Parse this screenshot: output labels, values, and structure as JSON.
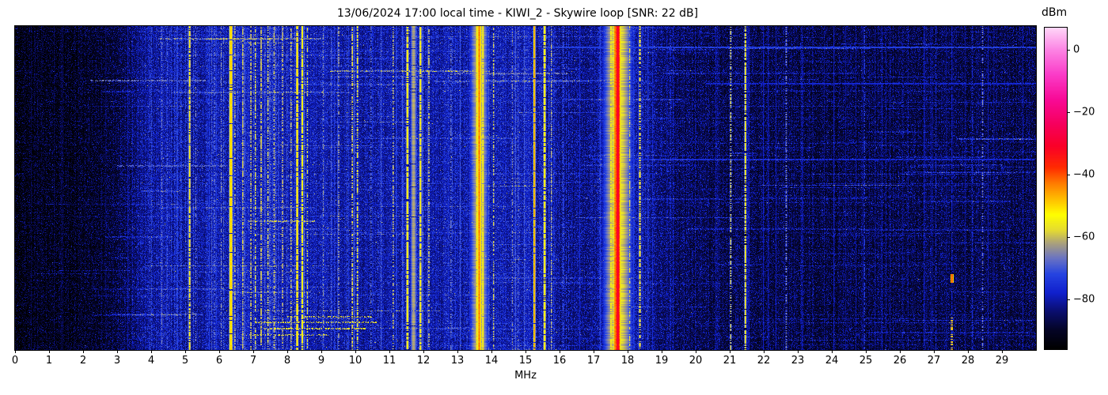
{
  "chart_data": {
    "type": "heatmap",
    "title": "13/06/2024 17:00 local time - KIWI_2 - Skywire loop [SNR: 22 dB]",
    "xlabel": "MHz",
    "x_range_mhz": [
      0,
      30
    ],
    "x_tick_labels": [
      "0",
      "1",
      "2",
      "3",
      "4",
      "5",
      "6",
      "7",
      "8",
      "9",
      "10",
      "11",
      "12",
      "13",
      "14",
      "15",
      "16",
      "17",
      "18",
      "19",
      "20",
      "21",
      "22",
      "23",
      "24",
      "25",
      "26",
      "27",
      "28",
      "29"
    ],
    "x_tick_values": [
      0,
      1,
      2,
      3,
      4,
      5,
      6,
      7,
      8,
      9,
      10,
      11,
      12,
      13,
      14,
      15,
      16,
      17,
      18,
      19,
      20,
      21,
      22,
      23,
      24,
      25,
      26,
      27,
      28,
      29
    ],
    "y_axis": "time (unlabeled waterfall rows)",
    "grid": false,
    "legend": "colorbar-right",
    "colorbar": {
      "label": "dBm",
      "tick_labels": [
        "0",
        "−20",
        "−40",
        "−60",
        "−80"
      ],
      "tick_values": [
        0,
        -20,
        -40,
        -60,
        -80
      ],
      "vmin": -96,
      "vmax": 7
    },
    "colormap_stops": [
      [
        -96,
        0,
        0,
        0
      ],
      [
        -90,
        4,
        4,
        38
      ],
      [
        -84,
        10,
        14,
        110
      ],
      [
        -78,
        16,
        32,
        205
      ],
      [
        -72,
        38,
        68,
        225
      ],
      [
        -67,
        105,
        115,
        195
      ],
      [
        -62,
        172,
        162,
        122
      ],
      [
        -58,
        228,
        218,
        50
      ],
      [
        -53,
        255,
        255,
        0
      ],
      [
        -48,
        255,
        190,
        0
      ],
      [
        -43,
        255,
        125,
        0
      ],
      [
        -38,
        255,
        45,
        0
      ],
      [
        -31,
        250,
        0,
        40
      ],
      [
        -24,
        246,
        0,
        92
      ],
      [
        -16,
        248,
        10,
        150
      ],
      [
        -8,
        250,
        60,
        200
      ],
      [
        0,
        252,
        132,
        228
      ],
      [
        7,
        255,
        214,
        248
      ]
    ],
    "noise_profile": [
      [
        0,
        -91.5
      ],
      [
        1.5,
        -91
      ],
      [
        2.6,
        -89.5
      ],
      [
        3.2,
        -86
      ],
      [
        3.8,
        -81
      ],
      [
        4.5,
        -79.5
      ],
      [
        5.1,
        -80.5
      ],
      [
        5.6,
        -79.5
      ],
      [
        6.5,
        -78.5
      ],
      [
        7.5,
        -78
      ],
      [
        8.5,
        -78.5
      ],
      [
        9.5,
        -79.5
      ],
      [
        10.3,
        -80.5
      ],
      [
        11.2,
        -80
      ],
      [
        12.0,
        -79.5
      ],
      [
        13.0,
        -79.5
      ],
      [
        14.0,
        -78.5
      ],
      [
        15.0,
        -78.5
      ],
      [
        15.8,
        -80
      ],
      [
        16.6,
        -83
      ],
      [
        17.1,
        -81
      ],
      [
        17.7,
        -78
      ],
      [
        18.2,
        -79
      ],
      [
        18.8,
        -83
      ],
      [
        19.5,
        -85
      ],
      [
        20.5,
        -86
      ],
      [
        22,
        -86.5
      ],
      [
        24,
        -87
      ],
      [
        26,
        -87
      ],
      [
        28,
        -86.5
      ],
      [
        30,
        -87
      ]
    ],
    "signals": [
      {
        "f": 3.95,
        "w": 0.03,
        "v": -68,
        "d": 0.45
      },
      {
        "f": 4.3,
        "w": 0.04,
        "v": -64,
        "d": 0.5
      },
      {
        "f": 4.47,
        "w": 0.03,
        "v": -67,
        "d": 0.4
      },
      {
        "f": 5.12,
        "w": 0.05,
        "v": -54,
        "d": 0.85
      },
      {
        "f": 5.3,
        "w": 0.03,
        "v": -63,
        "d": 0.4
      },
      {
        "f": 5.85,
        "w": 0.03,
        "v": -64,
        "d": 0.4
      },
      {
        "f": 6.05,
        "w": 0.03,
        "v": -62,
        "d": 0.45
      },
      {
        "f": 6.33,
        "w": 0.07,
        "v": -47,
        "d": 0.95
      },
      {
        "f": 6.45,
        "w": 0.03,
        "v": -58,
        "d": 0.5
      },
      {
        "f": 6.68,
        "w": 0.04,
        "v": -57,
        "d": 0.65
      },
      {
        "f": 6.92,
        "w": 0.04,
        "v": -57,
        "d": 0.6
      },
      {
        "f": 7.05,
        "w": 0.03,
        "v": -55,
        "d": 0.6
      },
      {
        "f": 7.22,
        "w": 0.04,
        "v": -56,
        "d": 0.65
      },
      {
        "f": 7.42,
        "w": 0.04,
        "v": -55,
        "d": 0.6
      },
      {
        "f": 7.6,
        "w": 0.03,
        "v": -57,
        "d": 0.5
      },
      {
        "f": 7.85,
        "w": 0.04,
        "v": -58,
        "d": 0.55
      },
      {
        "f": 8.1,
        "w": 0.03,
        "v": -57,
        "d": 0.5
      },
      {
        "f": 8.28,
        "w": 0.05,
        "v": -50,
        "d": 0.9
      },
      {
        "f": 8.43,
        "w": 0.05,
        "v": -51,
        "d": 0.85
      },
      {
        "f": 8.58,
        "w": 0.03,
        "v": -56,
        "d": 0.5
      },
      {
        "f": 9.05,
        "w": 0.03,
        "v": -61,
        "d": 0.4
      },
      {
        "f": 9.5,
        "w": 0.04,
        "v": -60,
        "d": 0.45
      },
      {
        "f": 9.9,
        "w": 0.04,
        "v": -55,
        "d": 0.6
      },
      {
        "f": 10.05,
        "w": 0.04,
        "v": -53,
        "d": 0.6
      },
      {
        "f": 10.45,
        "w": 0.03,
        "v": -64,
        "d": 0.4
      },
      {
        "f": 11.1,
        "w": 0.04,
        "v": -57,
        "d": 0.5
      },
      {
        "f": 11.52,
        "w": 0.06,
        "v": -53,
        "d": 0.9
      },
      {
        "f": 11.7,
        "w": 0.14,
        "v": -60,
        "d": 0.95
      },
      {
        "f": 11.9,
        "w": 0.06,
        "v": -54,
        "d": 0.85
      },
      {
        "f": 12.15,
        "w": 0.04,
        "v": -57,
        "d": 0.5
      },
      {
        "f": 12.8,
        "w": 0.03,
        "v": -63,
        "d": 0.4
      },
      {
        "f": 13.56,
        "w": 0.05,
        "v": -50,
        "d": 0.9
      },
      {
        "f": 13.63,
        "w": 0.08,
        "v": -42,
        "d": 1.0,
        "gw": 0.5,
        "gv": -62
      },
      {
        "f": 13.74,
        "w": 0.05,
        "v": -51,
        "d": 0.9
      },
      {
        "f": 14.05,
        "w": 0.04,
        "v": -57,
        "d": 0.5
      },
      {
        "f": 14.6,
        "w": 0.03,
        "v": -62,
        "d": 0.5
      },
      {
        "f": 15.25,
        "w": 0.04,
        "v": -43,
        "d": 0.95
      },
      {
        "f": 15.55,
        "w": 0.06,
        "v": -52,
        "d": 0.85
      },
      {
        "f": 15.75,
        "w": 0.03,
        "v": -58,
        "d": 0.5
      },
      {
        "f": 16.1,
        "w": 0.03,
        "v": -68,
        "d": 0.5
      },
      {
        "f": 17.5,
        "w": 0.05,
        "v": -53,
        "d": 0.75
      },
      {
        "f": 17.62,
        "w": 0.05,
        "v": -40,
        "d": 1.0
      },
      {
        "f": 17.7,
        "w": 0.09,
        "v": -28,
        "d": 1.0,
        "gw": 0.7,
        "gv": -58
      },
      {
        "f": 18.05,
        "w": 0.04,
        "v": -56,
        "d": 0.55
      },
      {
        "f": 18.35,
        "w": 0.05,
        "v": -54,
        "d": 0.6
      },
      {
        "f": 19.25,
        "w": 0.03,
        "v": -73,
        "d": 0.5
      },
      {
        "f": 21.02,
        "w": 0.04,
        "v": -56,
        "d": 0.5
      },
      {
        "f": 21.45,
        "w": 0.05,
        "v": -54,
        "d": 0.8
      },
      {
        "f": 22.65,
        "w": 0.04,
        "v": -62,
        "d": 0.45
      },
      {
        "f": 24.95,
        "w": 0.03,
        "v": -70,
        "d": 0.55
      },
      {
        "f": 27.05,
        "w": 0.03,
        "v": -74,
        "d": 0.7
      },
      {
        "f": 27.52,
        "w": 0.03,
        "v": -76,
        "d": 0.8
      },
      {
        "f": 28.12,
        "w": 0.03,
        "v": -73,
        "d": 0.6
      },
      {
        "f": 28.42,
        "w": 0.04,
        "v": -63,
        "d": 0.4
      }
    ],
    "spots": [
      {
        "f": 27.52,
        "w": 0.07,
        "y0": 0.765,
        "y1": 0.792,
        "v": -38,
        "d": 1.0
      },
      {
        "f": 27.52,
        "w": 0.05,
        "y0": 0.895,
        "y1": 1.0,
        "v": -45,
        "d": 0.55
      }
    ],
    "special_streaks": [
      {
        "f0": 15.5,
        "f1": 30,
        "y": 0.064,
        "h": 2,
        "v": -73,
        "d": 0.95
      },
      {
        "f0": 2.2,
        "f1": 5.6,
        "y": 0.165,
        "h": 2,
        "v": -67,
        "d": 0.6
      },
      {
        "f0": 3.0,
        "f1": 6.3,
        "y": 0.43,
        "h": 2,
        "v": -68,
        "d": 0.55
      },
      {
        "f0": 12.9,
        "f1": 16.2,
        "y": 0.145,
        "h": 2,
        "v": -66,
        "d": 0.6
      },
      {
        "f0": 17.0,
        "f1": 30,
        "y": 0.41,
        "h": 2,
        "v": -77,
        "d": 0.9
      },
      {
        "f0": 20.3,
        "f1": 30,
        "y": 0.175,
        "h": 2,
        "v": -77,
        "d": 0.9
      },
      {
        "f0": 7.0,
        "f1": 10.6,
        "y": 0.912,
        "h": 2,
        "v": -58,
        "d": 0.5
      },
      {
        "f0": 7.3,
        "f1": 10.3,
        "y": 0.932,
        "h": 2,
        "v": -57,
        "d": 0.5
      },
      {
        "f0": 8.0,
        "f1": 10.5,
        "y": 0.895,
        "h": 2,
        "v": -59,
        "d": 0.45
      },
      {
        "f0": 6.8,
        "f1": 9.2,
        "y": 0.952,
        "h": 2,
        "v": -58,
        "d": 0.45
      }
    ],
    "texture": {
      "seed": 1234567,
      "minor_lines": [
        {
          "count": 12,
          "fmin": 0.4,
          "fmax": 3.6,
          "bmin": 2,
          "bmax": 5
        },
        {
          "count": 95,
          "fmin": 3.8,
          "fmax": 16.2,
          "bmin": 3,
          "bmax": 9
        },
        {
          "count": 60,
          "fmin": 16.2,
          "fmax": 29.9,
          "bmin": 2,
          "bmax": 6
        }
      ],
      "streaks": {
        "count": 175,
        "len_min": 0.3,
        "len_max": 6,
        "bmin": 3,
        "bmax": 8
      }
    }
  }
}
